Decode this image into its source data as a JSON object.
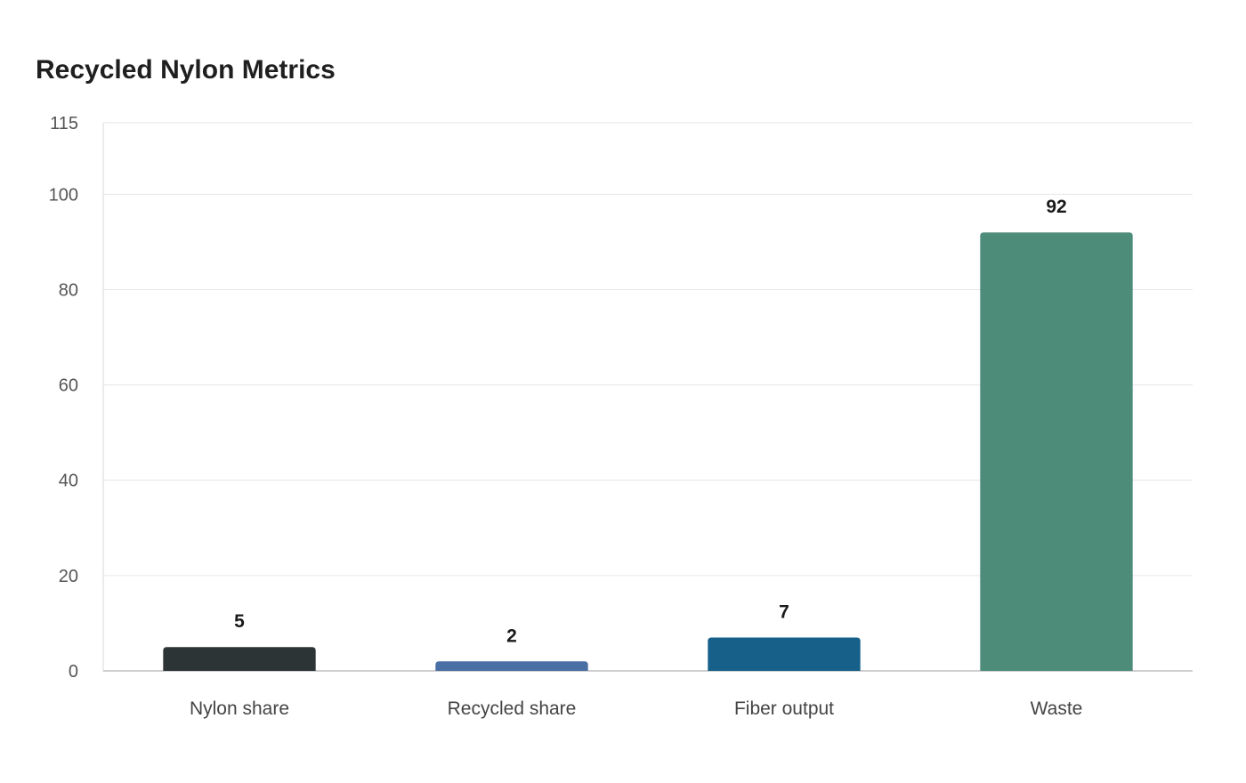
{
  "chart_data": {
    "type": "bar",
    "title": "Recycled Nylon Metrics",
    "xlabel": "",
    "ylabel": "",
    "categories": [
      "Nylon share",
      "Recycled share",
      "Fiber output",
      "Waste"
    ],
    "values": [
      5,
      2,
      7,
      92
    ],
    "value_labels": [
      "5",
      "2",
      "7",
      "92"
    ],
    "colors": [
      "#2d3436",
      "#4a6fa5",
      "#17608a",
      "#4e8c7a"
    ],
    "ylim": [
      0,
      115
    ],
    "yticks": [
      0,
      20,
      40,
      60,
      80,
      100,
      115
    ],
    "ytick_labels": [
      "0",
      "20",
      "40",
      "60",
      "80",
      "100",
      "115"
    ],
    "grid": true,
    "legend": "none"
  }
}
